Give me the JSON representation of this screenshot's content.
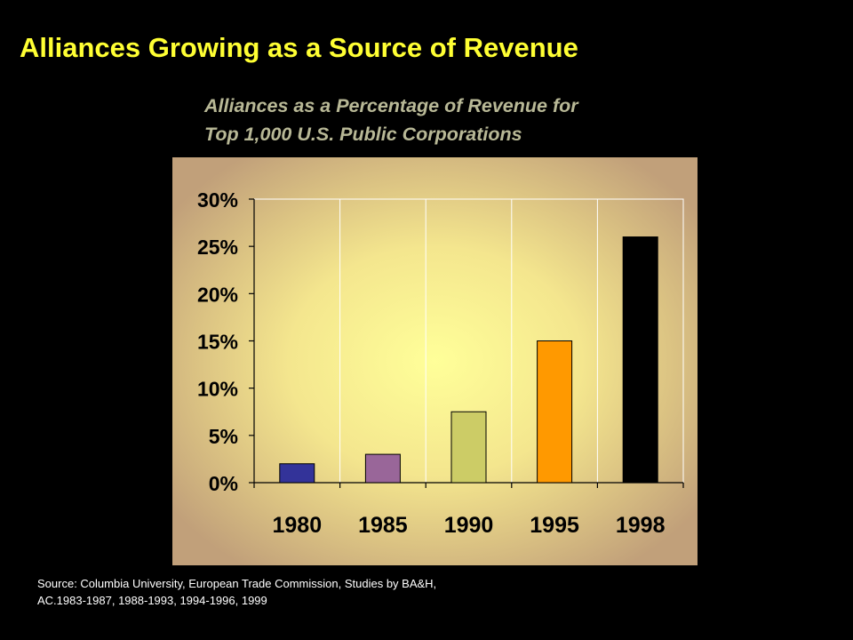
{
  "slide": {
    "title": "Alliances Growing as a Source of Revenue",
    "subtitle_line1": "Alliances as a Percentage of Revenue for",
    "subtitle_line2": "Top 1,000 U.S. Public Corporations"
  },
  "source": {
    "line1": "Source: Columbia University, European Trade Commission, Studies by BA&H,",
    "line2": "AC.1983-1987, 1988-1993, 1994-1996, 1999"
  },
  "colors": {
    "background": "#000000",
    "title": "#ffff33",
    "subtitle": "#b8b896",
    "bars": [
      "#333399",
      "#996699",
      "#cccc66",
      "#ff9900",
      "#000000"
    ]
  },
  "chart_data": {
    "type": "bar",
    "categories": [
      "1980",
      "1985",
      "1990",
      "1995",
      "1998"
    ],
    "values": [
      2,
      3,
      7.5,
      15,
      26
    ],
    "title": "",
    "xlabel": "",
    "ylabel": "",
    "ylim": [
      0,
      30
    ],
    "yticks": [
      0,
      5,
      10,
      15,
      20,
      25,
      30
    ],
    "ytick_labels": [
      "0%",
      "5%",
      "10%",
      "15%",
      "20%",
      "25%",
      "30%"
    ],
    "grid": "vertical",
    "legend": "none"
  }
}
